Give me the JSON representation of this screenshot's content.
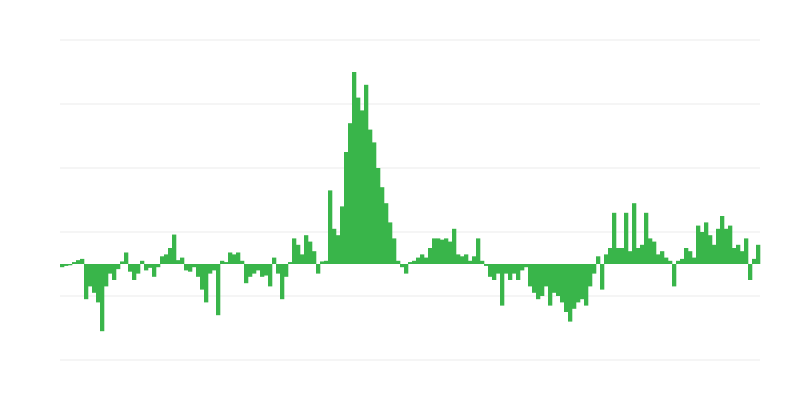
{
  "chart_data": {
    "type": "bar",
    "title": "",
    "xlabel": "",
    "ylabel": "",
    "ylim": [
      -15,
      35
    ],
    "gridlines": [
      -15,
      -5,
      5,
      15,
      25,
      35
    ],
    "grid": true,
    "legend": "none",
    "bar_color": "#39b54a",
    "grid_color": "#ebebeb",
    "values": [
      -0.5,
      -0.3,
      -0.2,
      0.3,
      0.6,
      0.8,
      -5.5,
      -3.5,
      -4.5,
      -6,
      -10.5,
      -3.5,
      -1.5,
      -2.5,
      -0.8,
      0.4,
      1.8,
      -1.2,
      -2.5,
      -1.5,
      0.5,
      -1,
      -0.6,
      -2,
      -0.5,
      1.2,
      1.5,
      2.5,
      4.6,
      0.6,
      1,
      -1,
      -1.2,
      -0.5,
      -2,
      -4,
      -6,
      -1.5,
      -1,
      -8,
      0.5,
      0.3,
      1.8,
      1.5,
      1.8,
      0.5,
      -3,
      -2,
      -1.5,
      -1,
      -2,
      -1.8,
      -3.5,
      1,
      -1.5,
      -5.5,
      -2,
      0.3,
      4,
      3,
      1.5,
      4.5,
      3.5,
      2,
      -1.5,
      0.4,
      0.5,
      11.5,
      5.5,
      4.5,
      9,
      17.5,
      22,
      30,
      26,
      24,
      28,
      21,
      19,
      15,
      12,
      9.5,
      6.5,
      4,
      0.5,
      -0.5,
      -1.5,
      0.3,
      0.5,
      1,
      1.5,
      1,
      2.5,
      4,
      4,
      3.8,
      4,
      3.5,
      5.5,
      1.5,
      1.2,
      1.5,
      0.5,
      1.2,
      4,
      0.5,
      -0.3,
      -2,
      -2.5,
      -1.5,
      -6.5,
      -1.5,
      -2.5,
      -1.5,
      -2.5,
      -1,
      -0.5,
      -3.5,
      -4.5,
      -5.5,
      -5,
      -3.5,
      -6.5,
      -4.5,
      -5,
      -6,
      -7.5,
      -9,
      -7,
      -6,
      -5.5,
      -6.5,
      -3.5,
      -1.5,
      1.2,
      -4,
      1.5,
      2.5,
      8,
      2.5,
      2.5,
      8,
      2,
      9.5,
      2.5,
      3,
      8,
      4,
      3.5,
      1.5,
      2,
      1,
      0.5,
      -3.5,
      0.5,
      0.8,
      2.5,
      2,
      1,
      6,
      5,
      6.5,
      4.5,
      3,
      5.5,
      7.5,
      5.5,
      6,
      2.5,
      3,
      2,
      4,
      -2.5,
      0.8,
      3
    ]
  }
}
